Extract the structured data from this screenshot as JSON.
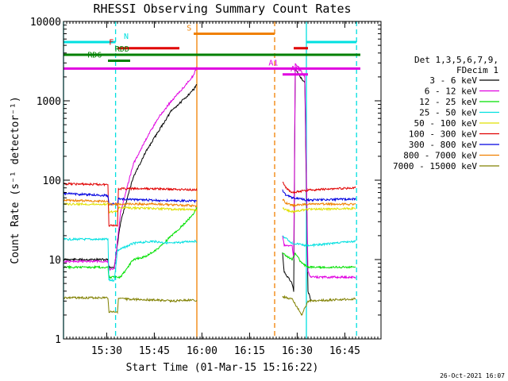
{
  "chart_data": {
    "type": "line",
    "title": "RHESSI Observing Summary Count Rates",
    "xlabel": "Start Time (01-Mar-15 15:16:22)",
    "ylabel": "Count Rate (s⁻¹ detector⁻¹)",
    "yscale": "log",
    "ylim": [
      1,
      10000
    ],
    "xlim_minutes": [
      0,
      100
    ],
    "xticks": [
      {
        "m": 13.6,
        "label": "15:30"
      },
      {
        "m": 28.6,
        "label": "15:45"
      },
      {
        "m": 43.6,
        "label": "16:00"
      },
      {
        "m": 58.6,
        "label": "16:15"
      },
      {
        "m": 73.6,
        "label": "16:30"
      },
      {
        "m": 88.6,
        "label": "16:45"
      }
    ],
    "yticks": [
      {
        "v": 1,
        "label": "1"
      },
      {
        "v": 10,
        "label": "10"
      },
      {
        "v": 100,
        "label": "100"
      },
      {
        "v": 1000,
        "label": "1000"
      },
      {
        "v": 10000,
        "label": "10000"
      }
    ],
    "legend_position": "right",
    "legend_header": [
      "Det 1,3,5,6,7,9,",
      "FDecim 1"
    ],
    "timestamp": "26-Oct-2021 16:07",
    "series": [
      {
        "name": "3 - 6 keV",
        "color": "#000000",
        "points": [
          [
            0,
            10
          ],
          [
            14,
            10
          ],
          [
            14.3,
            8
          ],
          [
            16,
            8
          ],
          [
            18,
            30
          ],
          [
            22,
            110
          ],
          [
            26,
            230
          ],
          [
            30,
            420
          ],
          [
            34,
            750
          ],
          [
            38,
            1050
          ],
          [
            41,
            1400
          ],
          [
            42,
            1600
          ]
        ],
        "points2": [
          [
            69,
            12
          ],
          [
            69.5,
            7
          ],
          [
            72,
            5
          ],
          [
            72.5,
            4
          ],
          [
            73,
            2500
          ],
          [
            75,
            1900
          ],
          [
            76,
            1700
          ],
          [
            77,
            4
          ],
          [
            78,
            3
          ]
        ]
      },
      {
        "name": "6 - 12 keV",
        "color": "#e000e0",
        "points": [
          [
            0,
            9.5
          ],
          [
            14,
            9.5
          ],
          [
            14.3,
            7.5
          ],
          [
            16,
            7.5
          ],
          [
            18,
            40
          ],
          [
            22,
            160
          ],
          [
            26,
            330
          ],
          [
            30,
            620
          ],
          [
            34,
            1000
          ],
          [
            38,
            1500
          ],
          [
            41,
            2100
          ],
          [
            42,
            2700
          ]
        ],
        "points2": [
          [
            69,
            20
          ],
          [
            69.5,
            15
          ],
          [
            72,
            15
          ],
          [
            72.5,
            10
          ],
          [
            73,
            3000
          ],
          [
            75,
            2300
          ],
          [
            76,
            2000
          ],
          [
            77,
            7
          ],
          [
            78,
            6
          ],
          [
            92,
            6
          ]
        ]
      },
      {
        "name": "12 - 25 keV",
        "color": "#00e000",
        "points": [
          [
            0,
            8
          ],
          [
            14,
            8
          ],
          [
            14.3,
            6
          ],
          [
            18,
            6
          ],
          [
            22,
            10
          ],
          [
            26,
            11
          ],
          [
            30,
            14
          ],
          [
            34,
            20
          ],
          [
            38,
            28
          ],
          [
            41,
            38
          ],
          [
            42,
            45
          ]
        ],
        "points2": [
          [
            69,
            12
          ],
          [
            72,
            10
          ],
          [
            73,
            12
          ],
          [
            75,
            9
          ],
          [
            77,
            8
          ],
          [
            92,
            8
          ]
        ]
      },
      {
        "name": "25 - 50 keV",
        "color": "#00e0e0",
        "points": [
          [
            0,
            18
          ],
          [
            14,
            18
          ],
          [
            14.3,
            5.5
          ],
          [
            16,
            5.5
          ],
          [
            17,
            13
          ],
          [
            22,
            16
          ],
          [
            28,
            17
          ],
          [
            34,
            16
          ],
          [
            40,
            17
          ],
          [
            42,
            17
          ]
        ],
        "points2": [
          [
            69,
            20
          ],
          [
            72,
            16
          ],
          [
            77,
            15
          ],
          [
            92,
            17
          ]
        ]
      },
      {
        "name": "50 - 100 keV",
        "color": "#e0e000",
        "points": [
          [
            0,
            50
          ],
          [
            14,
            50
          ],
          [
            14.3,
            40
          ],
          [
            17,
            40
          ],
          [
            17.3,
            45
          ],
          [
            28,
            44
          ],
          [
            34,
            43
          ],
          [
            40,
            43
          ],
          [
            42,
            42
          ]
        ],
        "points2": [
          [
            69,
            44
          ],
          [
            72,
            40
          ],
          [
            77,
            43
          ],
          [
            92,
            44
          ]
        ]
      },
      {
        "name": "100 - 300 keV",
        "color": "#e00000",
        "points": [
          [
            0,
            90
          ],
          [
            14,
            88
          ],
          [
            14.3,
            27
          ],
          [
            17,
            27
          ],
          [
            17.3,
            78
          ],
          [
            28,
            78
          ],
          [
            34,
            77
          ],
          [
            40,
            76
          ],
          [
            42,
            75
          ]
        ],
        "points2": [
          [
            69,
            95
          ],
          [
            70,
            80
          ],
          [
            72,
            70
          ],
          [
            77,
            75
          ],
          [
            92,
            80
          ]
        ]
      },
      {
        "name": "300 - 800 keV",
        "color": "#0000e0",
        "points": [
          [
            0,
            68
          ],
          [
            14,
            64
          ],
          [
            14.3,
            50
          ],
          [
            17,
            50
          ],
          [
            17.3,
            58
          ],
          [
            28,
            56
          ],
          [
            34,
            55
          ],
          [
            40,
            55
          ],
          [
            42,
            54
          ]
        ],
        "points2": [
          [
            69,
            75
          ],
          [
            70,
            65
          ],
          [
            72,
            60
          ],
          [
            77,
            56
          ],
          [
            92,
            58
          ]
        ]
      },
      {
        "name": "800 - 7000 keV",
        "color": "#f08000",
        "points": [
          [
            0,
            56
          ],
          [
            14,
            54
          ],
          [
            14.3,
            50
          ],
          [
            17,
            50
          ],
          [
            17.3,
            50
          ],
          [
            28,
            50
          ],
          [
            34,
            49
          ],
          [
            40,
            48
          ],
          [
            42,
            47
          ]
        ],
        "points2": [
          [
            69,
            58
          ],
          [
            70,
            52
          ],
          [
            72,
            48
          ],
          [
            77,
            50
          ],
          [
            92,
            50
          ]
        ]
      },
      {
        "name": "7000 - 15000 keV",
        "color": "#808000",
        "points": [
          [
            0,
            3.3
          ],
          [
            14,
            3.3
          ],
          [
            14.3,
            2.2
          ],
          [
            17,
            2.2
          ],
          [
            17.3,
            3.2
          ],
          [
            28,
            3.1
          ],
          [
            34,
            3.0
          ],
          [
            40,
            3.1
          ],
          [
            42,
            3.0
          ]
        ],
        "points2": [
          [
            69,
            3.4
          ],
          [
            72,
            3.2
          ],
          [
            75,
            2.0
          ],
          [
            77,
            3.0
          ],
          [
            92,
            3.2
          ]
        ]
      }
    ],
    "vlines": [
      {
        "m": 0,
        "color": "#00e0e0",
        "dash": false
      },
      {
        "m": 16.4,
        "color": "#00e0e0",
        "dash": true
      },
      {
        "m": 42,
        "color": "#f08000",
        "dash": false
      },
      {
        "m": 66.5,
        "color": "#f08000",
        "dash": true
      },
      {
        "m": 76.5,
        "color": "#00e0e0",
        "dash": false
      },
      {
        "m": 92.3,
        "color": "#00e0e0",
        "dash": true
      }
    ],
    "flag_bars": [
      {
        "label": "N",
        "color": "#00e0e0",
        "y": 5500,
        "segments": [
          [
            0,
            16.4
          ],
          [
            76.5,
            92.3
          ]
        ],
        "label_at": 19
      },
      {
        "label": "S",
        "color": "#f08000",
        "y": 7000,
        "segments": [
          [
            41,
            66.5
          ]
        ],
        "label_at": 38.8
      },
      {
        "label": "F",
        "color": "#e00000",
        "y": 4600,
        "segments": [
          [
            17,
            36.5
          ],
          [
            72.5,
            77
          ]
        ],
        "label_at": 14.3
      },
      {
        "label": "RDD",
        "color": "#008000",
        "y": 3800,
        "segments": [
          [
            0,
            93.5
          ]
        ],
        "label_at": 16.2
      },
      {
        "label": "RD6",
        "color": "#008000",
        "y": 3200,
        "segments": [
          [
            14,
            21
          ]
        ],
        "label_at": 7.6
      },
      {
        "label": "A1",
        "color": "#e000e0",
        "y": 2550,
        "segments": [
          [
            0,
            93.5
          ]
        ],
        "label_at": 64.6
      },
      {
        "label": "A0",
        "color": "#e000e0",
        "y": 2150,
        "segments": [
          [
            69,
            77
          ]
        ],
        "label_at": 71.5
      }
    ]
  }
}
